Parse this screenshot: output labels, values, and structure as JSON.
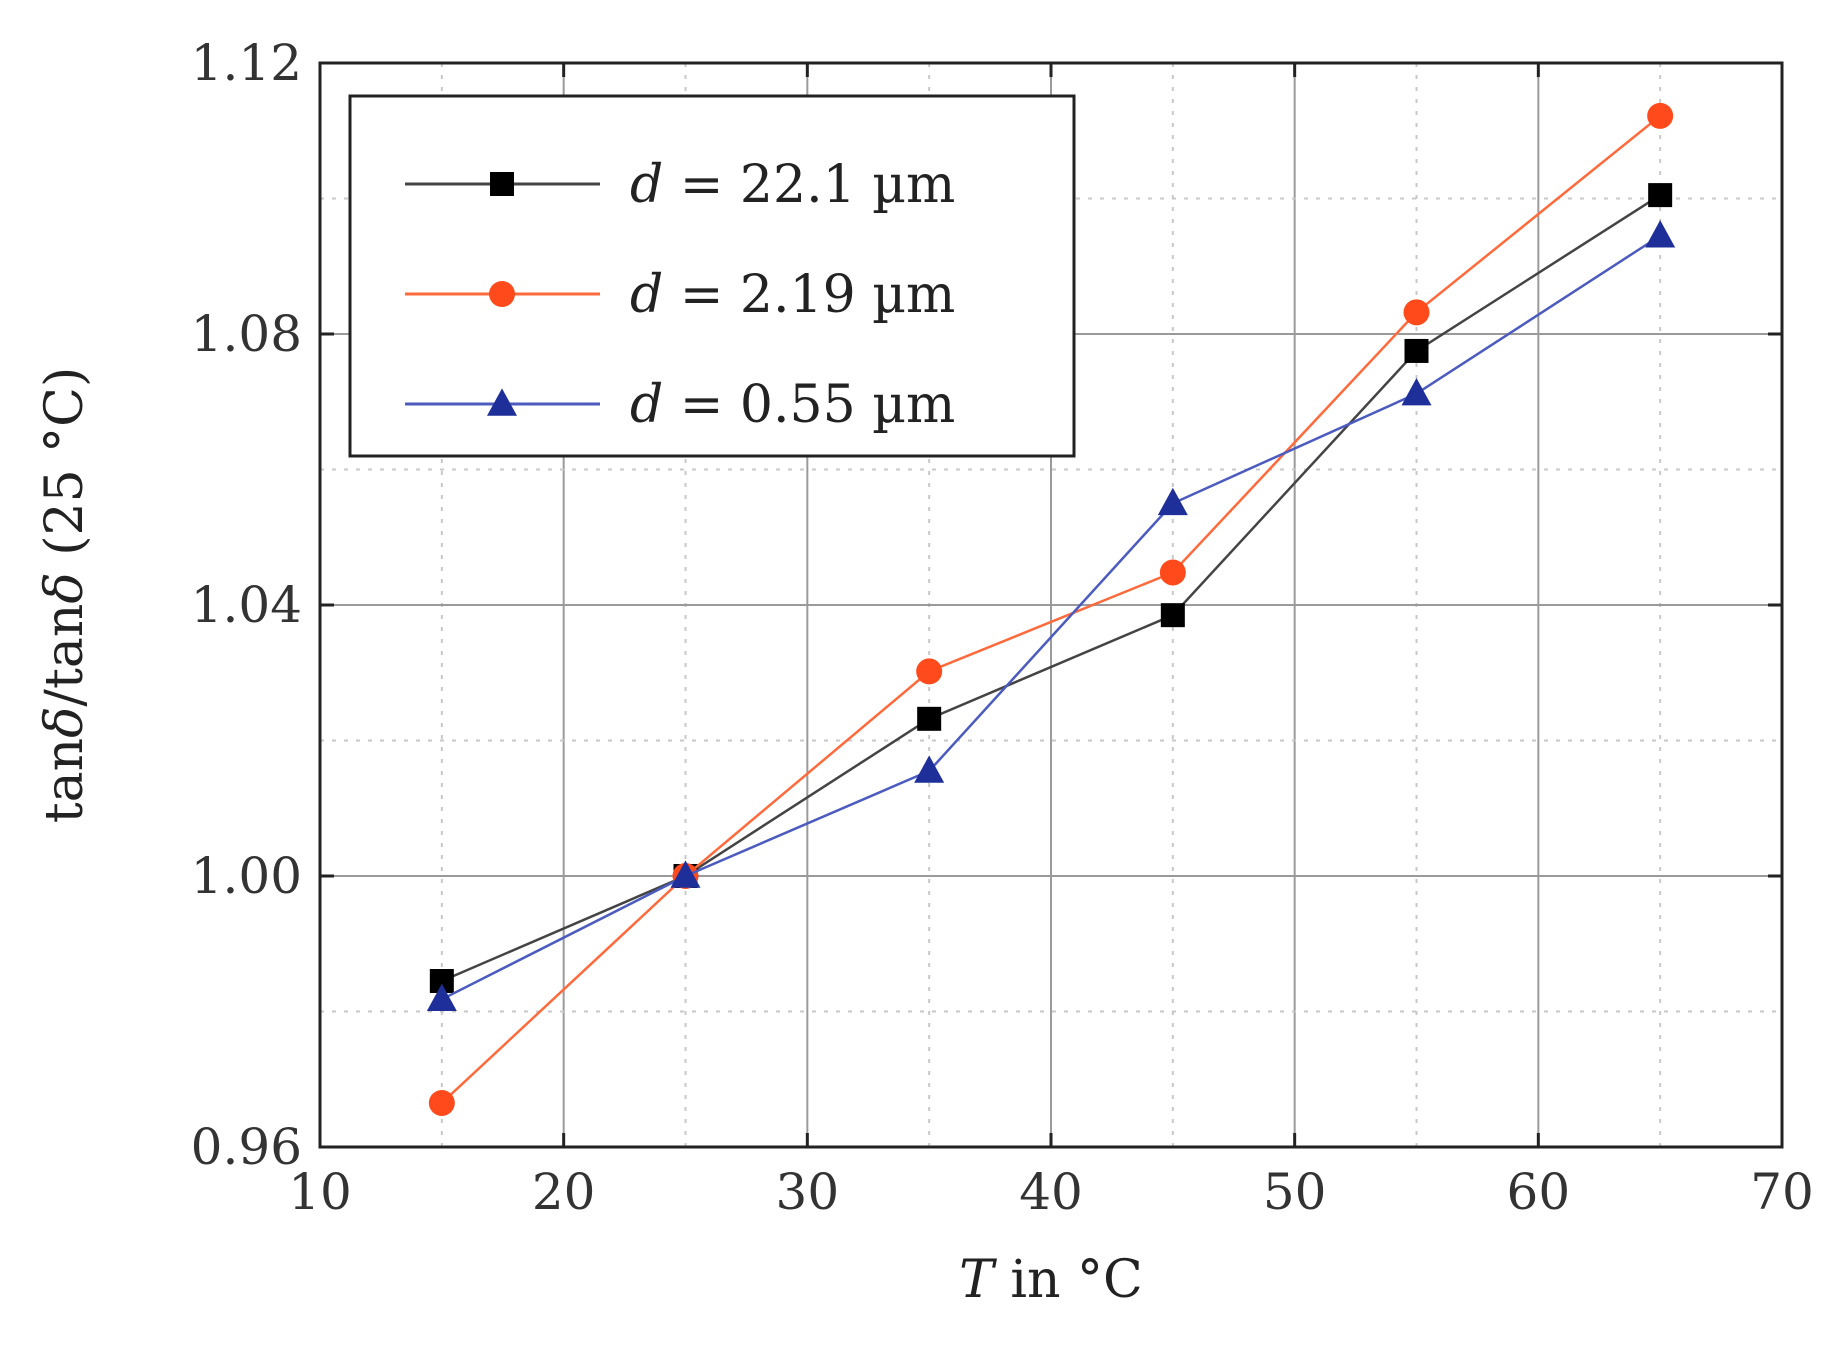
{
  "chart_data": {
    "type": "line",
    "title": "",
    "xlabel": {
      "var": "T",
      "rest": " in °C"
    },
    "ylabel": {
      "lead": "tan",
      "delta": "δ",
      "sep": "/tan",
      "tail": " (25 °C)"
    },
    "xlim": [
      10,
      70
    ],
    "ylim": [
      0.96,
      1.12
    ],
    "xticks": [
      "10",
      "20",
      "30",
      "40",
      "50",
      "60",
      "70"
    ],
    "yticks": [
      "0.96",
      "1.00",
      "1.04",
      "1.08",
      "1.12"
    ],
    "x": [
      15,
      25,
      35,
      45,
      55,
      65
    ],
    "grid": true,
    "legend_position": "top-left",
    "series": [
      {
        "name": "d = 22.1 µm",
        "d_symbol": "d",
        "label_rest": " = 22.1 µm",
        "color": "#000000",
        "line_color": "#444444",
        "marker": "square",
        "values": [
          0.9845,
          1.0,
          1.0232,
          1.0385,
          1.0775,
          1.1005
        ]
      },
      {
        "name": "d = 2.19 µm",
        "d_symbol": "d",
        "label_rest": " = 2.19 µm",
        "color": "#ff4a1c",
        "line_color": "#ff6a3c",
        "marker": "circle",
        "values": [
          0.9665,
          1.0,
          1.0302,
          1.0448,
          1.0832,
          1.1122
        ]
      },
      {
        "name": "d = 0.55 µm",
        "d_symbol": "d",
        "label_rest": " = 0.55 µm",
        "color": "#1f2f9a",
        "line_color": "#4b5bbf",
        "marker": "triangle",
        "values": [
          0.9818,
          1.0,
          1.0155,
          1.055,
          1.0712,
          1.0945
        ]
      }
    ]
  }
}
